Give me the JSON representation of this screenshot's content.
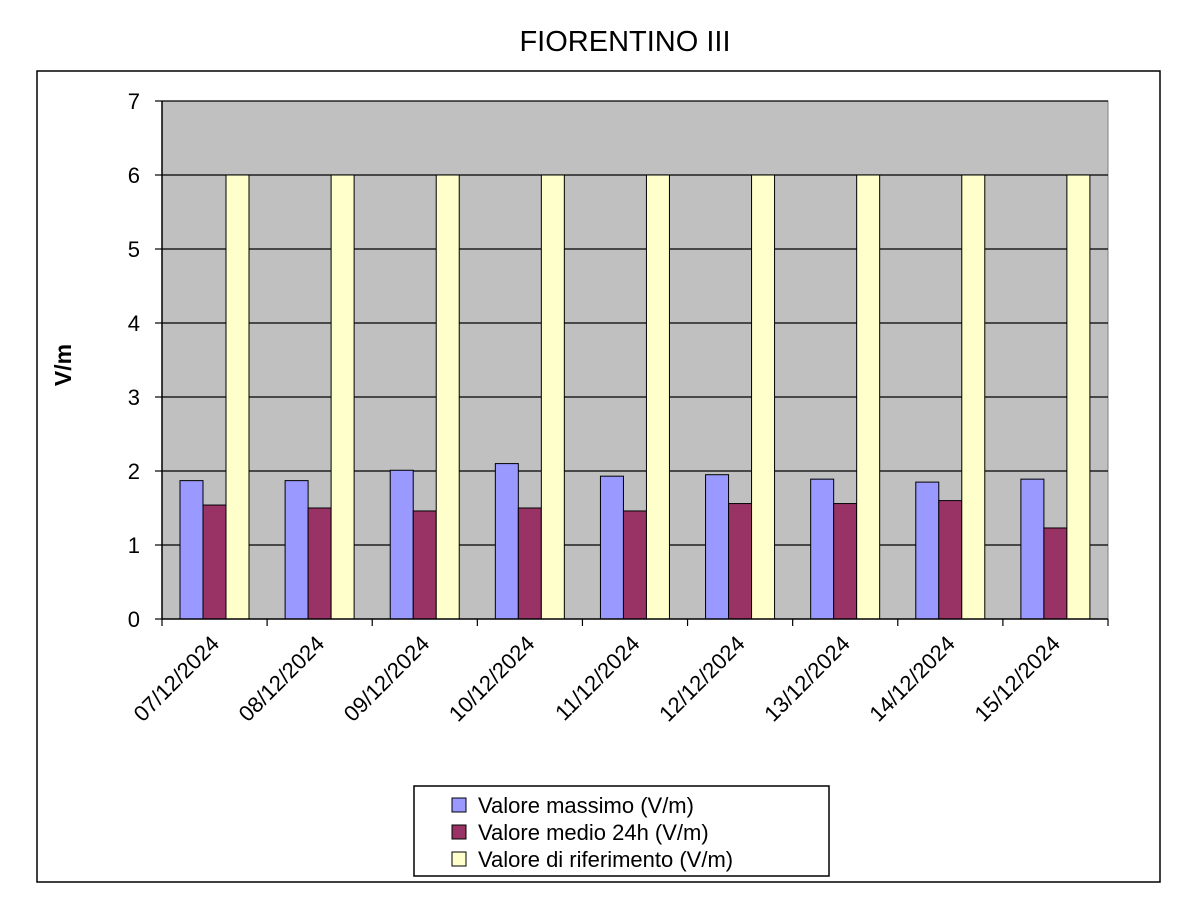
{
  "chart_data": {
    "type": "bar",
    "title": "FIORENTINO III",
    "xlabel": "",
    "ylabel": "V/m",
    "ylim": [
      0,
      7
    ],
    "yticks": [
      0,
      1,
      2,
      3,
      4,
      5,
      6,
      7
    ],
    "grid": true,
    "legend_position": "bottom",
    "categories": [
      "07/12/2024",
      "08/12/2024",
      "09/12/2024",
      "10/12/2024",
      "11/12/2024",
      "12/12/2024",
      "13/12/2024",
      "14/12/2024",
      "15/12/2024"
    ],
    "series": [
      {
        "name": "Valore massimo (V/m)",
        "color": "#9999ff",
        "values": [
          1.87,
          1.87,
          2.01,
          2.1,
          1.93,
          1.95,
          1.89,
          1.85,
          1.89
        ]
      },
      {
        "name": "Valore medio 24h (V/m)",
        "color": "#993366",
        "values": [
          1.54,
          1.5,
          1.46,
          1.5,
          1.46,
          1.56,
          1.56,
          1.6,
          1.23
        ]
      },
      {
        "name": "Valore di riferimento (V/m)",
        "color": "#ffffcc",
        "values": [
          6,
          6,
          6,
          6,
          6,
          6,
          6,
          6,
          6
        ]
      }
    ]
  }
}
